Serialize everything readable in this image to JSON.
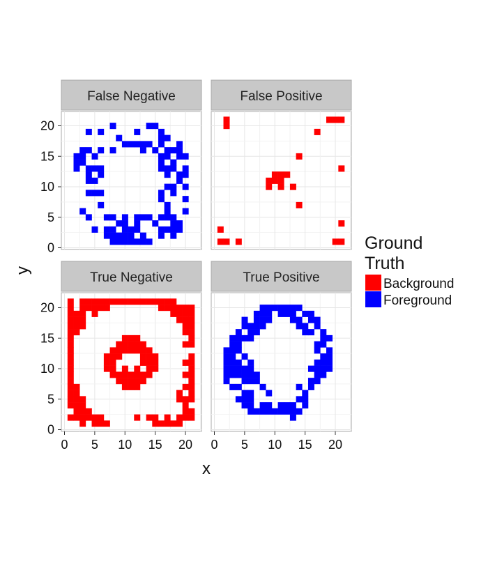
{
  "chart_data": {
    "type": "heatmap",
    "xlabel": "x",
    "ylabel": "y",
    "xlim": [
      -0.5,
      22
    ],
    "ylim": [
      -0.5,
      22.5
    ],
    "x_ticks": [
      0,
      5,
      10,
      15,
      20
    ],
    "y_ticks": [
      0,
      5,
      10,
      15,
      20
    ],
    "grid": true,
    "legend": {
      "title": "Ground\nTruth",
      "title_lines": [
        "Ground",
        "Truth"
      ],
      "placement": "right",
      "entries": [
        {
          "label": "Background",
          "color": "#ff0000"
        },
        {
          "label": "Foreground",
          "color": "#0000ff"
        }
      ]
    },
    "panels": [
      {
        "title": "False Negative",
        "color": "#0000ff",
        "cells": [
          [
            8,
            20
          ],
          [
            14,
            20
          ],
          [
            15,
            20
          ],
          [
            4,
            19
          ],
          [
            6,
            19
          ],
          [
            12,
            19
          ],
          [
            16,
            19
          ],
          [
            9,
            18
          ],
          [
            16,
            18
          ],
          [
            17,
            18
          ],
          [
            10,
            17
          ],
          [
            11,
            17
          ],
          [
            12,
            17
          ],
          [
            13,
            17
          ],
          [
            14,
            17
          ],
          [
            16,
            17
          ],
          [
            19,
            17
          ],
          [
            3,
            16
          ],
          [
            4,
            16
          ],
          [
            6,
            16
          ],
          [
            8,
            16
          ],
          [
            13,
            16
          ],
          [
            15,
            16
          ],
          [
            17,
            16
          ],
          [
            18,
            16
          ],
          [
            19,
            16
          ],
          [
            2,
            15
          ],
          [
            3,
            15
          ],
          [
            5,
            15
          ],
          [
            16,
            15
          ],
          [
            17,
            15
          ],
          [
            19,
            15
          ],
          [
            20,
            15
          ],
          [
            2,
            14
          ],
          [
            3,
            14
          ],
          [
            16,
            14
          ],
          [
            18,
            14
          ],
          [
            2,
            13
          ],
          [
            4,
            13
          ],
          [
            5,
            13
          ],
          [
            6,
            13
          ],
          [
            16,
            13
          ],
          [
            17,
            13
          ],
          [
            18,
            13
          ],
          [
            20,
            13
          ],
          [
            4,
            12
          ],
          [
            6,
            12
          ],
          [
            17,
            12
          ],
          [
            19,
            12
          ],
          [
            20,
            12
          ],
          [
            4,
            11
          ],
          [
            5,
            11
          ],
          [
            19,
            11
          ],
          [
            17,
            10
          ],
          [
            18,
            10
          ],
          [
            20,
            10
          ],
          [
            4,
            9
          ],
          [
            5,
            9
          ],
          [
            6,
            9
          ],
          [
            16,
            9
          ],
          [
            18,
            9
          ],
          [
            16,
            8
          ],
          [
            20,
            8
          ],
          [
            6,
            7
          ],
          [
            17,
            7
          ],
          [
            3,
            6
          ],
          [
            17,
            6
          ],
          [
            20,
            6
          ],
          [
            4,
            5
          ],
          [
            7,
            5
          ],
          [
            8,
            5
          ],
          [
            10,
            5
          ],
          [
            12,
            5
          ],
          [
            13,
            5
          ],
          [
            14,
            5
          ],
          [
            16,
            5
          ],
          [
            17,
            5
          ],
          [
            18,
            5
          ],
          [
            9,
            4
          ],
          [
            10,
            4
          ],
          [
            12,
            4
          ],
          [
            15,
            4
          ],
          [
            18,
            4
          ],
          [
            19,
            4
          ],
          [
            7,
            3
          ],
          [
            8,
            3
          ],
          [
            10,
            3
          ],
          [
            11,
            3
          ],
          [
            12,
            3
          ],
          [
            16,
            3
          ],
          [
            17,
            3
          ],
          [
            18,
            3
          ],
          [
            5,
            3
          ],
          [
            19,
            3
          ],
          [
            7,
            2
          ],
          [
            8,
            2
          ],
          [
            9,
            2
          ],
          [
            10,
            2
          ],
          [
            11,
            2
          ],
          [
            13,
            2
          ],
          [
            16,
            2
          ],
          [
            18,
            2
          ],
          [
            8,
            1
          ],
          [
            9,
            1
          ],
          [
            10,
            1
          ],
          [
            11,
            1
          ],
          [
            12,
            1
          ],
          [
            13,
            1
          ],
          [
            14,
            1
          ]
        ]
      },
      {
        "title": "False Positive",
        "color": "#ff0000",
        "cells": [
          [
            2,
            21
          ],
          [
            19,
            21
          ],
          [
            20,
            21
          ],
          [
            21,
            21
          ],
          [
            2,
            20
          ],
          [
            17,
            19
          ],
          [
            14,
            15
          ],
          [
            21,
            13
          ],
          [
            10,
            12
          ],
          [
            11,
            12
          ],
          [
            12,
            12
          ],
          [
            10,
            11
          ],
          [
            11,
            11
          ],
          [
            9,
            11
          ],
          [
            9,
            10
          ],
          [
            11,
            10
          ],
          [
            13,
            10
          ],
          [
            14,
            7
          ],
          [
            21,
            4
          ],
          [
            1,
            3
          ],
          [
            1,
            1
          ],
          [
            2,
            1
          ],
          [
            4,
            1
          ],
          [
            20,
            1
          ],
          [
            21,
            1
          ]
        ]
      },
      {
        "title": "True Negative",
        "color": "#ff0000",
        "cells": []
      },
      {
        "title": "True Positive",
        "color": "#0000ff",
        "cells": [
          [
            8,
            20
          ],
          [
            9,
            20
          ],
          [
            10,
            20
          ],
          [
            11,
            20
          ],
          [
            12,
            20
          ],
          [
            13,
            20
          ],
          [
            14,
            20
          ],
          [
            7,
            19
          ],
          [
            8,
            19
          ],
          [
            9,
            19
          ],
          [
            11,
            19
          ],
          [
            12,
            19
          ],
          [
            13,
            19
          ],
          [
            15,
            19
          ],
          [
            16,
            19
          ],
          [
            5,
            18
          ],
          [
            7,
            18
          ],
          [
            8,
            18
          ],
          [
            9,
            18
          ],
          [
            13,
            18
          ],
          [
            14,
            18
          ],
          [
            16,
            18
          ],
          [
            17,
            18
          ],
          [
            5,
            17
          ],
          [
            6,
            17
          ],
          [
            7,
            17
          ],
          [
            8,
            17
          ],
          [
            14,
            17
          ],
          [
            15,
            17
          ],
          [
            17,
            17
          ],
          [
            4,
            16
          ],
          [
            6,
            16
          ],
          [
            7,
            16
          ],
          [
            15,
            16
          ],
          [
            16,
            16
          ],
          [
            18,
            16
          ],
          [
            3,
            15
          ],
          [
            4,
            15
          ],
          [
            5,
            15
          ],
          [
            6,
            15
          ],
          [
            18,
            15
          ],
          [
            19,
            15
          ],
          [
            3,
            14
          ],
          [
            4,
            14
          ],
          [
            17,
            14
          ],
          [
            18,
            14
          ],
          [
            2,
            13
          ],
          [
            3,
            13
          ],
          [
            4,
            13
          ],
          [
            17,
            13
          ],
          [
            19,
            13
          ],
          [
            2,
            12
          ],
          [
            3,
            12
          ],
          [
            5,
            12
          ],
          [
            18,
            12
          ],
          [
            19,
            12
          ],
          [
            2,
            11
          ],
          [
            3,
            11
          ],
          [
            4,
            11
          ],
          [
            6,
            11
          ],
          [
            17,
            11
          ],
          [
            18,
            11
          ],
          [
            19,
            11
          ],
          [
            2,
            10
          ],
          [
            3,
            10
          ],
          [
            4,
            10
          ],
          [
            5,
            10
          ],
          [
            6,
            10
          ],
          [
            16,
            10
          ],
          [
            17,
            10
          ],
          [
            18,
            10
          ],
          [
            19,
            10
          ],
          [
            2,
            9
          ],
          [
            3,
            9
          ],
          [
            4,
            9
          ],
          [
            5,
            9
          ],
          [
            6,
            9
          ],
          [
            7,
            9
          ],
          [
            17,
            9
          ],
          [
            18,
            9
          ],
          [
            2,
            8
          ],
          [
            5,
            8
          ],
          [
            6,
            8
          ],
          [
            7,
            8
          ],
          [
            16,
            8
          ],
          [
            17,
            8
          ],
          [
            3,
            7
          ],
          [
            4,
            7
          ],
          [
            8,
            7
          ],
          [
            14,
            7
          ],
          [
            16,
            7
          ],
          [
            5,
            6
          ],
          [
            6,
            6
          ],
          [
            9,
            6
          ],
          [
            15,
            6
          ],
          [
            4,
            5
          ],
          [
            5,
            5
          ],
          [
            6,
            5
          ],
          [
            14,
            5
          ],
          [
            15,
            5
          ],
          [
            5,
            4
          ],
          [
            6,
            4
          ],
          [
            8,
            4
          ],
          [
            9,
            4
          ],
          [
            11,
            4
          ],
          [
            12,
            4
          ],
          [
            13,
            4
          ],
          [
            15,
            4
          ],
          [
            6,
            3
          ],
          [
            7,
            3
          ],
          [
            8,
            3
          ],
          [
            9,
            3
          ],
          [
            10,
            3
          ],
          [
            11,
            3
          ],
          [
            12,
            3
          ],
          [
            13,
            3
          ],
          [
            14,
            3
          ],
          [
            13,
            2
          ]
        ]
      }
    ]
  }
}
